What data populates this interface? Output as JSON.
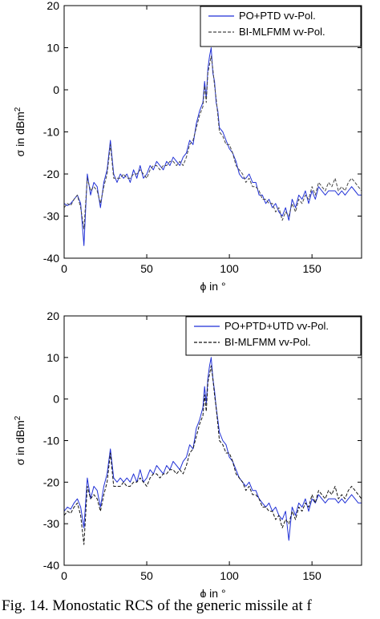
{
  "caption": "Fig. 14. Monostatic RCS of the generic missile at f",
  "chart_data": [
    {
      "type": "line",
      "xlabel": "ϕ in °",
      "ylabel": "σ in dBm",
      "ylabel_sup": "2",
      "xlim": [
        0,
        180
      ],
      "ylim": [
        -40,
        20
      ],
      "xticks": [
        0,
        50,
        100,
        150
      ],
      "yticks": [
        20,
        10,
        0,
        -10,
        -20,
        -30,
        -40
      ],
      "grid": false,
      "legend": "top-right",
      "series": [
        {
          "name": "PO+PTD vv-Pol.",
          "color": "#1f2fd6",
          "style": "solid",
          "x": [
            0,
            2,
            4,
            6,
            8,
            10,
            12,
            14,
            16,
            18,
            20,
            22,
            24,
            26,
            28,
            30,
            32,
            34,
            36,
            38,
            40,
            42,
            44,
            46,
            48,
            50,
            52,
            54,
            56,
            58,
            60,
            62,
            64,
            66,
            68,
            70,
            72,
            74,
            76,
            78,
            80,
            82,
            84,
            85,
            86,
            87,
            88,
            89,
            90,
            91,
            92,
            93,
            94,
            96,
            98,
            100,
            102,
            104,
            106,
            108,
            110,
            112,
            114,
            116,
            118,
            120,
            122,
            124,
            126,
            128,
            130,
            132,
            134,
            136,
            138,
            140,
            142,
            144,
            146,
            148,
            150,
            152,
            154,
            156,
            158,
            160,
            162,
            164,
            166,
            168,
            170,
            172,
            174,
            176,
            178,
            180
          ],
          "y": [
            -27,
            -27.5,
            -27,
            -26,
            -25,
            -27,
            -37,
            -20,
            -25,
            -22,
            -23,
            -28,
            -22,
            -19,
            -12,
            -20,
            -22,
            -20,
            -21,
            -20,
            -22,
            -19,
            -21,
            -18,
            -21,
            -20,
            -18,
            -19,
            -17,
            -18,
            -19,
            -17,
            -18,
            -16,
            -17,
            -18,
            -16,
            -15,
            -12,
            -13,
            -8,
            -5,
            -3,
            2,
            -2,
            5,
            8,
            10,
            4,
            2,
            -3,
            -5,
            -9,
            -10,
            -12,
            -14,
            -15,
            -17,
            -20,
            -21,
            -21,
            -20,
            -22,
            -22,
            -25,
            -25,
            -27,
            -26,
            -28,
            -27,
            -29,
            -30,
            -28,
            -31,
            -26,
            -28,
            -25,
            -26,
            -24,
            -27,
            -24,
            -26,
            -23,
            -24,
            -25,
            -24,
            -24,
            -24,
            -25,
            -24,
            -25,
            -24,
            -23,
            -24,
            -25,
            -25
          ]
        },
        {
          "name": "BI-MLFMM vv-Pol.",
          "color": "#444444",
          "style": "dashed",
          "x": [
            0,
            2,
            4,
            6,
            8,
            10,
            12,
            14,
            16,
            18,
            20,
            22,
            24,
            26,
            28,
            30,
            32,
            34,
            36,
            38,
            40,
            42,
            44,
            46,
            48,
            50,
            52,
            54,
            56,
            58,
            60,
            62,
            64,
            66,
            68,
            70,
            72,
            74,
            76,
            78,
            80,
            82,
            84,
            85,
            86,
            87,
            88,
            89,
            90,
            91,
            92,
            93,
            94,
            96,
            98,
            100,
            102,
            104,
            106,
            108,
            110,
            112,
            114,
            116,
            118,
            120,
            122,
            124,
            126,
            128,
            130,
            132,
            134,
            136,
            138,
            140,
            142,
            144,
            146,
            148,
            150,
            152,
            154,
            156,
            158,
            160,
            162,
            164,
            166,
            168,
            170,
            172,
            174,
            176,
            178,
            180
          ],
          "y": [
            -28,
            -27,
            -27.5,
            -26,
            -25,
            -28,
            -33,
            -21,
            -24,
            -23,
            -24,
            -27,
            -23,
            -20,
            -13,
            -21,
            -21,
            -21,
            -20,
            -21,
            -21,
            -20,
            -20,
            -19,
            -20,
            -21,
            -19,
            -18,
            -18,
            -19,
            -18,
            -18,
            -17,
            -17,
            -18,
            -17,
            -18,
            -16,
            -13,
            -12,
            -9,
            -6,
            -4,
            1,
            -3,
            4,
            6,
            8,
            5,
            1,
            -2,
            -6,
            -10,
            -11,
            -13,
            -13,
            -15,
            -18,
            -19,
            -20,
            -22,
            -21,
            -23,
            -23,
            -24,
            -26,
            -26,
            -27,
            -27,
            -29,
            -28,
            -31,
            -29,
            -30,
            -27,
            -29,
            -26,
            -27,
            -25,
            -26,
            -23,
            -25,
            -22,
            -23,
            -24,
            -22,
            -23,
            -21,
            -24,
            -23,
            -24,
            -22,
            -21,
            -22,
            -23,
            -24
          ]
        }
      ]
    },
    {
      "type": "line",
      "xlabel": "ϕ in °",
      "ylabel": "σ in dBm",
      "ylabel_sup": "2",
      "xlim": [
        0,
        180
      ],
      "ylim": [
        -40,
        20
      ],
      "xticks": [
        0,
        50,
        100,
        150
      ],
      "yticks": [
        20,
        10,
        0,
        -10,
        -20,
        -30,
        -40
      ],
      "grid": false,
      "legend": "top-right",
      "series": [
        {
          "name": "PO+PTD+UTD vv-Pol.",
          "color": "#1f2fd6",
          "style": "solid",
          "x": [
            0,
            2,
            4,
            6,
            8,
            10,
            12,
            14,
            16,
            18,
            20,
            22,
            24,
            26,
            28,
            30,
            32,
            34,
            36,
            38,
            40,
            42,
            44,
            46,
            48,
            50,
            52,
            54,
            56,
            58,
            60,
            62,
            64,
            66,
            68,
            70,
            72,
            74,
            76,
            78,
            80,
            82,
            84,
            85,
            86,
            87,
            88,
            89,
            90,
            91,
            92,
            93,
            94,
            96,
            98,
            100,
            102,
            104,
            106,
            108,
            110,
            112,
            114,
            116,
            118,
            120,
            122,
            124,
            126,
            128,
            130,
            132,
            134,
            136,
            138,
            140,
            142,
            144,
            146,
            148,
            150,
            152,
            154,
            156,
            158,
            160,
            162,
            164,
            166,
            168,
            170,
            172,
            174,
            176,
            178,
            180
          ],
          "y": [
            -27,
            -26,
            -26.5,
            -25,
            -24,
            -26,
            -31,
            -19,
            -24,
            -21,
            -22,
            -26,
            -21,
            -18,
            -12,
            -19,
            -20,
            -19,
            -20,
            -19,
            -20,
            -18,
            -20,
            -17,
            -20,
            -19,
            -17,
            -18,
            -16,
            -17,
            -18,
            -16,
            -17,
            -15,
            -16,
            -17,
            -15,
            -14,
            -11,
            -12,
            -7,
            -5,
            -2,
            3,
            -1,
            5,
            8,
            10,
            5,
            2,
            -2,
            -5,
            -8,
            -10,
            -11,
            -14,
            -15,
            -17,
            -19,
            -20,
            -21,
            -20,
            -22,
            -22,
            -24,
            -25,
            -26,
            -25,
            -27,
            -26,
            -28,
            -29,
            -27,
            -34,
            -26,
            -28,
            -25,
            -26,
            -24,
            -27,
            -24,
            -25,
            -23,
            -24,
            -25,
            -24,
            -24,
            -24,
            -25,
            -24,
            -25,
            -24,
            -23,
            -24,
            -25,
            -25
          ]
        },
        {
          "name": "BI-MLFMM vv-Pol.",
          "color": "#111111",
          "style": "dashed",
          "x": [
            0,
            2,
            4,
            6,
            8,
            10,
            12,
            14,
            16,
            18,
            20,
            22,
            24,
            26,
            28,
            30,
            32,
            34,
            36,
            38,
            40,
            42,
            44,
            46,
            48,
            50,
            52,
            54,
            56,
            58,
            60,
            62,
            64,
            66,
            68,
            70,
            72,
            74,
            76,
            78,
            80,
            82,
            84,
            85,
            86,
            87,
            88,
            89,
            90,
            91,
            92,
            93,
            94,
            96,
            98,
            100,
            102,
            104,
            106,
            108,
            110,
            112,
            114,
            116,
            118,
            120,
            122,
            124,
            126,
            128,
            130,
            132,
            134,
            136,
            138,
            140,
            142,
            144,
            146,
            148,
            150,
            152,
            154,
            156,
            158,
            160,
            162,
            164,
            166,
            168,
            170,
            172,
            174,
            176,
            178,
            180
          ],
          "y": [
            -28,
            -27,
            -27.5,
            -26,
            -25,
            -28,
            -35,
            -21,
            -24,
            -23,
            -24,
            -27,
            -23,
            -20,
            -13,
            -21,
            -21,
            -21,
            -20,
            -21,
            -21,
            -20,
            -20,
            -19,
            -20,
            -21,
            -19,
            -18,
            -18,
            -19,
            -18,
            -18,
            -17,
            -17,
            -18,
            -17,
            -18,
            -16,
            -13,
            -12,
            -9,
            -6,
            -4,
            1,
            -3,
            4,
            6,
            8,
            5,
            1,
            -2,
            -6,
            -10,
            -11,
            -13,
            -13,
            -15,
            -18,
            -19,
            -20,
            -22,
            -21,
            -23,
            -23,
            -24,
            -26,
            -26,
            -27,
            -27,
            -29,
            -28,
            -31,
            -29,
            -30,
            -27,
            -29,
            -26,
            -27,
            -25,
            -26,
            -23,
            -25,
            -22,
            -23,
            -24,
            -22,
            -23,
            -21,
            -24,
            -23,
            -24,
            -22,
            -21,
            -22,
            -23,
            -24
          ]
        }
      ]
    }
  ]
}
